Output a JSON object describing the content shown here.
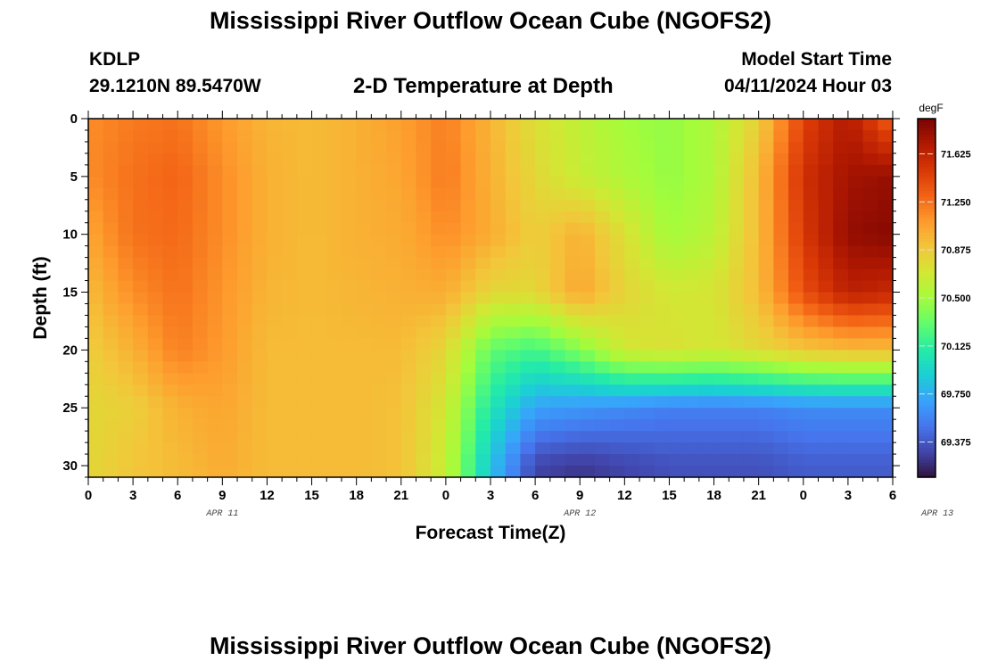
{
  "page": {
    "title_top": "Mississippi River Outflow Ocean Cube (NGOFS2)",
    "title_bottom": "Mississippi River Outflow Ocean Cube (NGOFS2)",
    "station": "KDLP",
    "coords": "29.1210N  89.5470W",
    "model_start_label": "Model Start Time",
    "model_start_value": "04/11/2024 Hour 03"
  },
  "chart_data": {
    "type": "heatmap",
    "title": "2-D Temperature at Depth",
    "xlabel": "Forecast Time(Z)",
    "ylabel": "Depth (ft)",
    "units": "degF",
    "x_hours_since_start": [
      0,
      54
    ],
    "x_tick_labels": [
      "0",
      "3",
      "6",
      "9",
      "12",
      "15",
      "18",
      "21",
      "0",
      "3",
      "6",
      "9",
      "12",
      "15",
      "18",
      "21",
      "0",
      "3",
      "6"
    ],
    "date_labels": [
      "APR 11",
      "APR 12",
      "APR 13"
    ],
    "y_range": [
      0,
      31
    ],
    "y_ticks": [
      0,
      5,
      10,
      15,
      20,
      25,
      30
    ],
    "colorbar": {
      "range": [
        69.1,
        71.9
      ],
      "ticks": [
        "71.625",
        "71.250",
        "70.875",
        "70.500",
        "70.125",
        "69.750",
        "69.375"
      ],
      "colors": [
        "#30123b",
        "#4145ab",
        "#4675ed",
        "#39a2fc",
        "#1bcfd4",
        "#24eca6",
        "#61fc6c",
        "#a4fc3b",
        "#d1e834",
        "#f3c63a",
        "#fe9b2d",
        "#f36315",
        "#d93806",
        "#b11901",
        "#7a0403"
      ]
    },
    "temperature_time_grid_hours": [
      0,
      3,
      6,
      9,
      12,
      15,
      18,
      21,
      24,
      27,
      30,
      33,
      36,
      39,
      42,
      45,
      48,
      51,
      54
    ],
    "temperature_depth_grid_ft": [
      0,
      5,
      10,
      15,
      20,
      25,
      30
    ],
    "temperature_values": [
      [
        71.15,
        71.22,
        71.25,
        71.1,
        70.98,
        70.95,
        71.0,
        71.08,
        71.2,
        70.98,
        70.75,
        70.62,
        70.5,
        70.45,
        70.55,
        70.85,
        71.45,
        71.7,
        71.3
      ],
      [
        71.15,
        71.25,
        71.3,
        71.15,
        71.0,
        70.95,
        71.0,
        71.05,
        71.22,
        71.0,
        70.8,
        70.65,
        70.55,
        70.45,
        70.55,
        70.95,
        71.55,
        71.75,
        71.8
      ],
      [
        71.05,
        71.25,
        71.28,
        71.15,
        71.0,
        70.95,
        71.0,
        71.02,
        71.15,
        71.02,
        70.85,
        71.0,
        70.75,
        70.5,
        70.6,
        70.95,
        71.5,
        71.8,
        71.85
      ],
      [
        70.95,
        71.15,
        71.25,
        71.12,
        70.98,
        70.95,
        70.98,
        71.0,
        71.02,
        70.8,
        70.8,
        71.05,
        70.82,
        70.7,
        70.72,
        70.95,
        71.4,
        71.65,
        71.6
      ],
      [
        70.85,
        71.0,
        71.2,
        71.1,
        70.95,
        70.95,
        70.95,
        70.95,
        70.8,
        70.3,
        70.2,
        70.4,
        70.7,
        70.75,
        70.7,
        70.8,
        70.9,
        70.95,
        70.95
      ],
      [
        70.8,
        70.85,
        71.0,
        71.05,
        70.95,
        70.95,
        70.95,
        70.92,
        70.7,
        70.05,
        69.7,
        69.65,
        69.6,
        69.55,
        69.55,
        69.55,
        69.6,
        69.6,
        69.6
      ],
      [
        70.8,
        70.9,
        70.95,
        71.02,
        70.95,
        70.95,
        70.95,
        70.92,
        70.65,
        69.85,
        69.3,
        69.25,
        69.3,
        69.35,
        69.35,
        69.35,
        69.4,
        69.4,
        69.4
      ]
    ]
  }
}
